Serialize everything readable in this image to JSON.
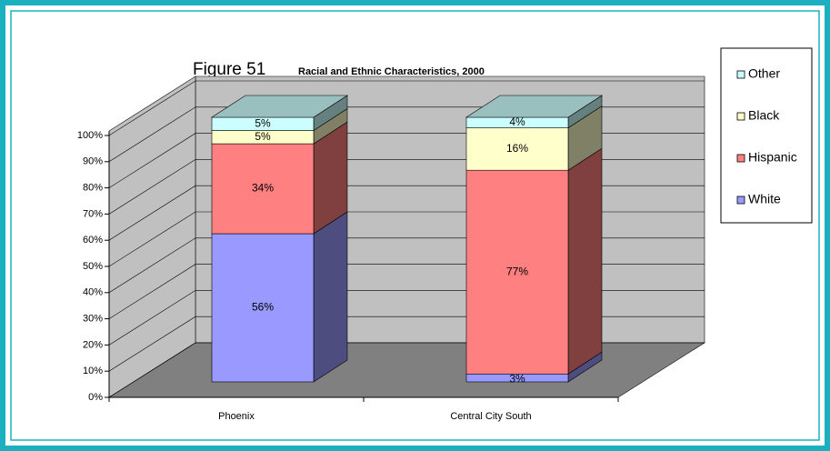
{
  "chart_data": {
    "type": "bar3d_stacked",
    "title": "Figure 51",
    "subtitle": "Racial and Ethnic Characteristics, 2000",
    "categories": [
      "Phoenix",
      "Central City South"
    ],
    "series": [
      {
        "name": "White",
        "color": "#9999ff",
        "values": [
          56,
          3
        ],
        "value_labels": [
          "56%",
          "3%"
        ]
      },
      {
        "name": "Hispanic",
        "color": "#ff8080",
        "values": [
          34,
          77
        ],
        "value_labels": [
          "34%",
          "77%"
        ]
      },
      {
        "name": "Black",
        "color": "#ffffcc",
        "values": [
          5,
          16
        ],
        "value_labels": [
          "5%",
          "16%"
        ]
      },
      {
        "name": "Other",
        "color": "#ccffff",
        "values": [
          5,
          4
        ],
        "value_labels": [
          "5%",
          "4%"
        ]
      }
    ],
    "ylim": [
      0,
      100
    ],
    "yticks": [
      {
        "value": 0,
        "label": "0%"
      },
      {
        "value": 10,
        "label": "10%"
      },
      {
        "value": 20,
        "label": "20%"
      },
      {
        "value": 30,
        "label": "30%"
      },
      {
        "value": 40,
        "label": "40%"
      },
      {
        "value": 50,
        "label": "50%"
      },
      {
        "value": 60,
        "label": "60%"
      },
      {
        "value": 70,
        "label": "70%"
      },
      {
        "value": 80,
        "label": "80%"
      },
      {
        "value": 90,
        "label": "90%"
      },
      {
        "value": 100,
        "label": "100%"
      }
    ],
    "grid": true,
    "legend": "right"
  }
}
